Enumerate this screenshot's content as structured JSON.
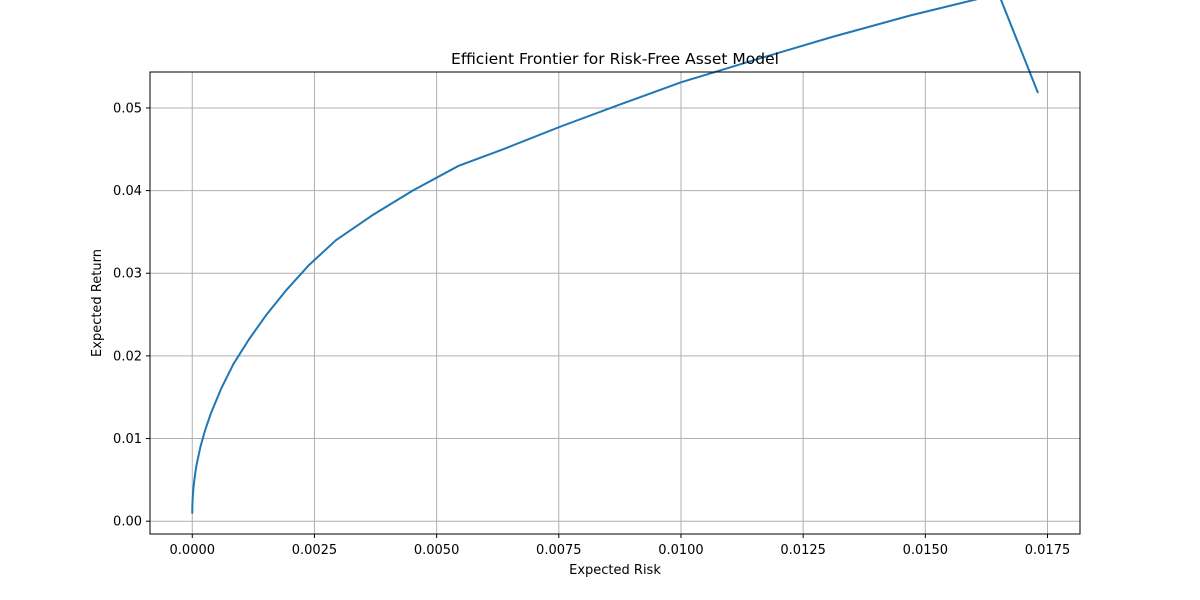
{
  "chart_data": {
    "type": "line",
    "title": "Efficient Frontier for Risk-Free Asset Model",
    "xlabel": "Expected Risk",
    "ylabel": "Expected Return",
    "xlim": [
      -0.000865,
      0.018165
    ],
    "ylim": [
      -0.00155,
      0.05435
    ],
    "xticks": [
      0.0,
      0.0025,
      0.005,
      0.0075,
      0.01,
      0.0125,
      0.015,
      0.0175
    ],
    "xtick_labels": [
      "0.0000",
      "0.0025",
      "0.0050",
      "0.0075",
      "0.0100",
      "0.0125",
      "0.0150",
      "0.0175"
    ],
    "yticks": [
      0.0,
      0.01,
      0.02,
      0.03,
      0.04,
      0.05
    ],
    "ytick_labels": [
      "0.00",
      "0.01",
      "0.02",
      "0.03",
      "0.04",
      "0.05"
    ],
    "grid": true,
    "colors": {
      "line": "#1f77b4",
      "grid": "#b0b0b0",
      "axes": "#000000"
    },
    "series": [
      {
        "x": [
          0.0,
          2.6e-06,
          1.05e-05,
          2.36e-05,
          4.2e-05,
          6.56e-05,
          9.45e-05,
          0.000167,
          0.000262,
          0.000378,
          0.000588,
          0.00084,
          0.00116,
          0.00152,
          0.00193,
          0.00239,
          0.00294,
          0.00368,
          0.00451,
          0.00545,
          0.00636,
          0.00756,
          0.00879,
          0.01,
          0.0115,
          0.0131,
          0.0147,
          0.0165,
          0.0173
        ],
        "y": [
          0.001,
          0.002,
          0.003,
          0.004,
          0.005,
          0.006,
          0.007,
          0.009,
          0.011,
          0.013,
          0.016,
          0.019,
          0.022,
          0.025,
          0.028,
          0.031,
          0.034,
          0.037,
          0.04,
          0.043,
          0.045,
          0.0478,
          0.0505,
          0.0531,
          0.0558,
          0.0586,
          0.0612,
          0.0638,
          0.0519
        ]
      }
    ]
  }
}
